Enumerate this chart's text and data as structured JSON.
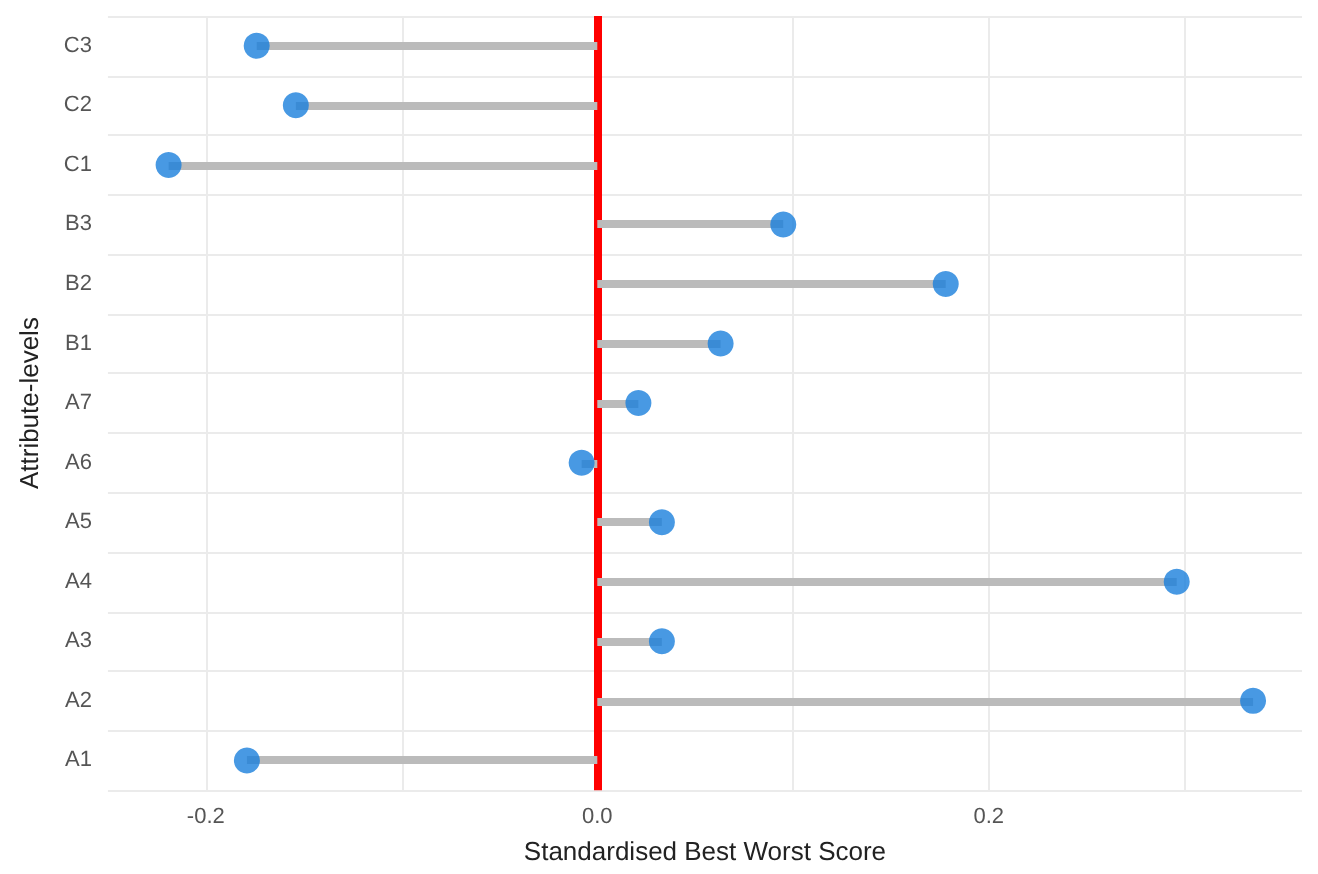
{
  "chart_data": {
    "type": "lollipop",
    "orientation": "horizontal",
    "xlabel": "Standardised Best Worst Score",
    "ylabel": "Attribute-levels",
    "categories": [
      "C3",
      "C2",
      "C1",
      "B3",
      "B2",
      "B1",
      "A7",
      "A6",
      "A5",
      "A4",
      "A3",
      "A2",
      "A1"
    ],
    "values": [
      -0.174,
      -0.154,
      -0.219,
      0.095,
      0.178,
      0.063,
      0.021,
      -0.008,
      0.033,
      0.296,
      0.033,
      0.335,
      -0.179
    ],
    "color": "#1a7fdc",
    "marker": "circle",
    "xlim": [
      -0.25,
      0.36
    ],
    "xticks": [
      {
        "value": -0.2,
        "label": "-0.2"
      },
      {
        "value": -0.1,
        "label": null
      },
      {
        "value": 0,
        "label": "0.0"
      },
      {
        "value": 0.1,
        "label": null
      },
      {
        "value": 0.2,
        "label": "0.2"
      },
      {
        "value": 0.3,
        "label": null
      }
    ],
    "ref_lines": [
      {
        "axis": "x",
        "value": 0,
        "color": "#ff0000"
      }
    ],
    "grid": true
  }
}
